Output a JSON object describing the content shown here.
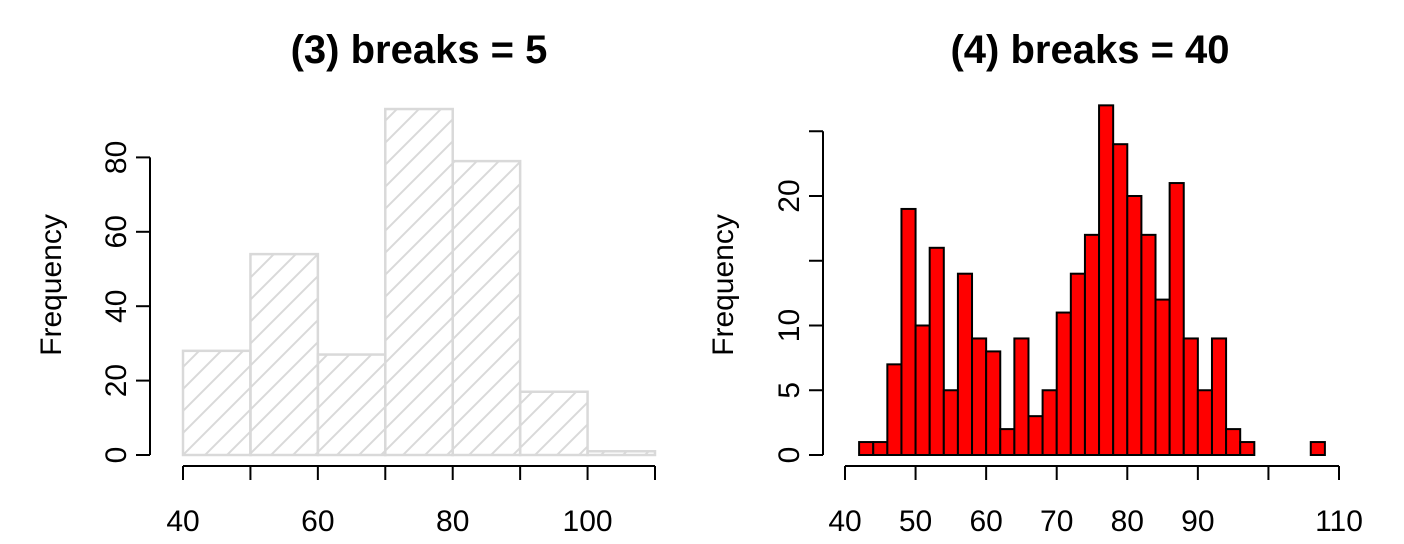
{
  "chart_data": [
    {
      "type": "bar",
      "title": "(3) breaks = 5",
      "xlabel": "",
      "ylabel": "Frequency",
      "bin_edges": [
        40,
        50,
        60,
        70,
        80,
        90,
        100,
        110
      ],
      "values": [
        28,
        54,
        27,
        93,
        79,
        17,
        1
      ],
      "xlim": [
        40,
        110
      ],
      "ylim": [
        0,
        93
      ],
      "x_ticks": [
        40,
        50,
        60,
        70,
        80,
        90,
        100,
        110
      ],
      "x_tick_labels": [
        "40",
        "",
        "60",
        "",
        "80",
        "",
        "100",
        ""
      ],
      "y_ticks": [
        0,
        20,
        40,
        60,
        80
      ],
      "y_tick_labels": [
        "0",
        "20",
        "40",
        "60",
        "80"
      ],
      "fill": "hatched",
      "bar_color": "#d9d9d9",
      "grid": false
    },
    {
      "type": "bar",
      "title": "(4) breaks = 40",
      "xlabel": "",
      "ylabel": "Frequency",
      "bin_edges": [
        42,
        44,
        46,
        48,
        50,
        52,
        54,
        56,
        58,
        60,
        62,
        64,
        66,
        68,
        70,
        72,
        74,
        76,
        78,
        80,
        82,
        84,
        86,
        88,
        90,
        92,
        94,
        96,
        98,
        100,
        102,
        104,
        106,
        108
      ],
      "values": [
        1,
        1,
        7,
        19,
        10,
        16,
        5,
        14,
        9,
        8,
        2,
        9,
        3,
        5,
        11,
        14,
        17,
        27,
        24,
        20,
        17,
        12,
        21,
        9,
        5,
        9,
        2,
        1,
        0,
        0,
        0,
        0,
        1
      ],
      "xlim": [
        40,
        110
      ],
      "ylim": [
        0,
        27
      ],
      "x_ticks": [
        40,
        50,
        60,
        70,
        80,
        90,
        100,
        110
      ],
      "x_tick_labels": [
        "40",
        "50",
        "60",
        "70",
        "80",
        "90",
        "",
        "110"
      ],
      "y_ticks": [
        0,
        5,
        10,
        15,
        20,
        25
      ],
      "y_tick_labels": [
        "0",
        "5",
        "10",
        "",
        "20",
        ""
      ],
      "fill": "solid",
      "bar_color": "#ff0000",
      "bar_stroke": "#000000",
      "grid": false
    }
  ]
}
